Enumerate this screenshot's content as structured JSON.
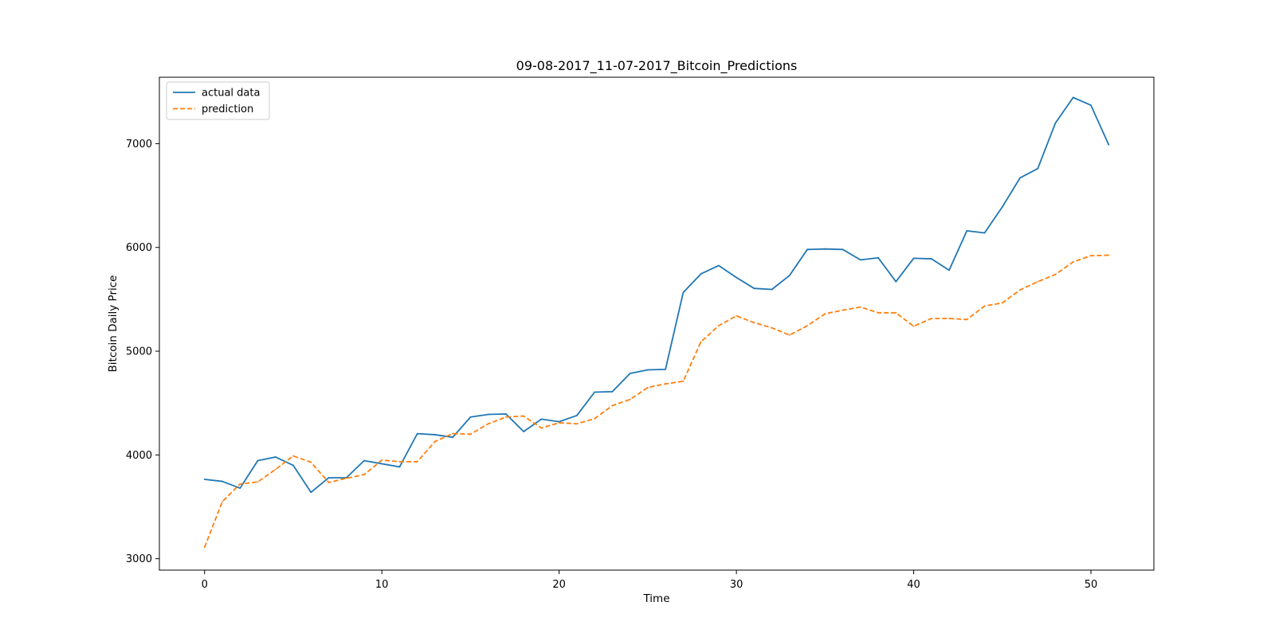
{
  "chart_data": {
    "type": "line",
    "title": "09-08-2017_11-07-2017_Bitcoin_Predictions",
    "xlabel": "Time",
    "ylabel": "Bitcoin Daily Price",
    "xlim": [
      -2.55,
      53.55
    ],
    "ylim": [
      2890,
      7640
    ],
    "x_ticks": [
      0,
      10,
      20,
      30,
      40,
      50
    ],
    "y_ticks": [
      3000,
      4000,
      5000,
      6000,
      7000
    ],
    "grid": false,
    "legend_position": "top-left",
    "x": [
      0,
      1,
      2,
      3,
      4,
      5,
      6,
      7,
      8,
      9,
      10,
      11,
      12,
      13,
      14,
      15,
      16,
      17,
      18,
      19,
      20,
      21,
      22,
      23,
      24,
      25,
      26,
      27,
      28,
      29,
      30,
      31,
      32,
      33,
      34,
      35,
      36,
      37,
      38,
      39,
      40,
      41,
      42,
      43,
      44,
      45,
      46,
      47,
      48,
      49,
      50,
      51
    ],
    "series": [
      {
        "name": "actual data",
        "color": "#1f77b4",
        "style": "solid",
        "values": [
          3765,
          3745,
          3680,
          3945,
          3980,
          3900,
          3640,
          3780,
          3780,
          3945,
          3915,
          3885,
          4205,
          4195,
          4170,
          4365,
          4390,
          4395,
          4225,
          4345,
          4320,
          4380,
          4605,
          4610,
          4785,
          4820,
          4825,
          5565,
          5745,
          5825,
          5710,
          5605,
          5595,
          5730,
          5980,
          5985,
          5980,
          5880,
          5900,
          5670,
          5895,
          5890,
          5780,
          6160,
          6140,
          6390,
          6670,
          6760,
          7200,
          7445,
          7370,
          6990
        ]
      },
      {
        "name": "prediction",
        "color": "#ff7f0e",
        "style": "dashed",
        "values": [
          3110,
          3550,
          3720,
          3740,
          3860,
          3990,
          3930,
          3735,
          3775,
          3810,
          3950,
          3935,
          3935,
          4130,
          4205,
          4200,
          4300,
          4365,
          4375,
          4260,
          4310,
          4300,
          4350,
          4475,
          4535,
          4650,
          4685,
          4710,
          5090,
          5245,
          5340,
          5275,
          5225,
          5155,
          5245,
          5360,
          5395,
          5425,
          5370,
          5370,
          5240,
          5315,
          5315,
          5305,
          5435,
          5465,
          5590,
          5670,
          5740,
          5860,
          5920,
          5925
        ]
      }
    ]
  }
}
